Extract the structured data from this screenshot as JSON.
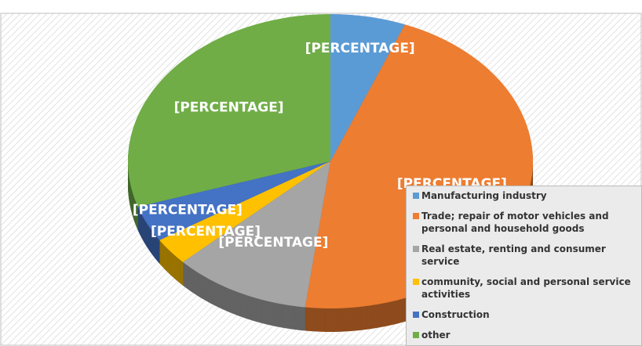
{
  "chart_data": {
    "type": "pie",
    "categories": [
      "Manufacturing industry",
      "Trade; repair of motor vehicles and personal and household goods",
      "Real estate, renting and consumer service",
      "community, social and personal service activities",
      "Construction",
      "other"
    ],
    "values": [
      6,
      46,
      11,
      3,
      4,
      30
    ],
    "value_labels": [
      "[PERCENTAGE]",
      "[PERCENTAGE]",
      "[PERCENTAGE]",
      "[PERCENTAGE]",
      "[PERCENTAGE]",
      "[PERCENTAGE]"
    ],
    "colors": [
      "#5b9bd5",
      "#ed7d31",
      "#a5a5a5",
      "#ffc000",
      "#4472c4",
      "#70ad47"
    ],
    "legend": "right"
  }
}
